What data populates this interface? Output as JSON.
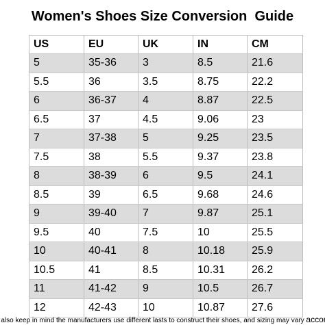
{
  "title": "Women's Shoes Size Conversion  Guide",
  "table": {
    "headers": [
      "US",
      "EU",
      "UK",
      "IN",
      "CM"
    ],
    "rows": [
      [
        "5",
        "35-36",
        "3",
        "8.5",
        "21.6"
      ],
      [
        "5.5",
        "36",
        "3.5",
        "8.75",
        "22.2"
      ],
      [
        "6",
        "36-37",
        "4",
        "8.87",
        "22.5"
      ],
      [
        "6.5",
        "37",
        "4.5",
        "9.06",
        "23"
      ],
      [
        "7",
        "37-38",
        "5",
        "9.25",
        "23.5"
      ],
      [
        "7.5",
        "38",
        "5.5",
        "9.37",
        "23.8"
      ],
      [
        "8",
        "38-39",
        "6",
        "9.5",
        "24.1"
      ],
      [
        "8.5",
        "39",
        "6.5",
        "9.68",
        "24.6"
      ],
      [
        "9",
        "39-40",
        "7",
        "9.87",
        "25.1"
      ],
      [
        "9.5",
        "40",
        "7.5",
        "10",
        "25.5"
      ],
      [
        "10",
        "40-41",
        "8",
        "10.18",
        "25.9"
      ],
      [
        "10.5",
        "41",
        "8.5",
        "10.31",
        "26.2"
      ],
      [
        "11",
        "41-42",
        "9",
        "10.5",
        "26.7"
      ],
      [
        "12",
        "42-43",
        "10",
        "10.87",
        "27.6"
      ]
    ],
    "shade_color": "#dcdcdc"
  },
  "footer": {
    "note": "se also keep in mind the manufacturers use different lasts to construct their shoes, and sizing may vary",
    "note_tail": "accordi"
  }
}
